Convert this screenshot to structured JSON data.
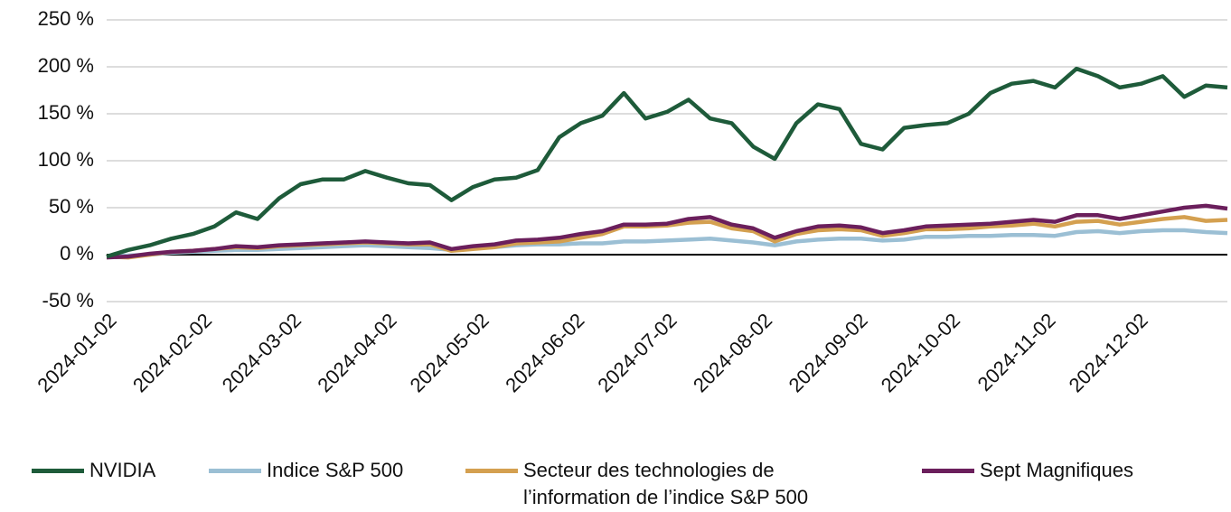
{
  "chart_data": {
    "type": "line",
    "x": [
      "2024-01-02",
      "2024-01-09",
      "2024-01-16",
      "2024-01-23",
      "2024-01-30",
      "2024-02-06",
      "2024-02-13",
      "2024-02-20",
      "2024-02-27",
      "2024-03-05",
      "2024-03-12",
      "2024-03-19",
      "2024-03-26",
      "2024-04-02",
      "2024-04-09",
      "2024-04-16",
      "2024-04-23",
      "2024-04-30",
      "2024-05-07",
      "2024-05-14",
      "2024-05-21",
      "2024-05-28",
      "2024-06-04",
      "2024-06-11",
      "2024-06-18",
      "2024-06-25",
      "2024-07-02",
      "2024-07-09",
      "2024-07-16",
      "2024-07-23",
      "2024-07-30",
      "2024-08-06",
      "2024-08-13",
      "2024-08-20",
      "2024-08-27",
      "2024-09-03",
      "2024-09-10",
      "2024-09-17",
      "2024-09-24",
      "2024-10-01",
      "2024-10-08",
      "2024-10-15",
      "2024-10-22",
      "2024-10-29",
      "2024-11-05",
      "2024-11-12",
      "2024-11-19",
      "2024-11-26",
      "2024-12-03",
      "2024-12-10",
      "2024-12-17",
      "2024-12-24",
      "2024-12-31"
    ],
    "series": [
      {
        "name": "NVIDIA",
        "color": "#1e5b3a",
        "values": [
          -2,
          5,
          10,
          17,
          22,
          30,
          45,
          38,
          60,
          75,
          80,
          80,
          89,
          82,
          76,
          74,
          58,
          72,
          80,
          82,
          90,
          125,
          140,
          148,
          172,
          145,
          152,
          165,
          145,
          140,
          115,
          102,
          140,
          160,
          155,
          118,
          112,
          135,
          138,
          140,
          150,
          172,
          182,
          185,
          178,
          198,
          190,
          178,
          182,
          190,
          168,
          180,
          178
        ]
      },
      {
        "name": "Indice S&P 500",
        "color": "#9bbfd4",
        "values": [
          -2,
          -1,
          0,
          2,
          3,
          4,
          5,
          5,
          6,
          7,
          8,
          9,
          10,
          9,
          8,
          7,
          5,
          7,
          8,
          10,
          11,
          11,
          12,
          12,
          14,
          14,
          15,
          16,
          17,
          15,
          13,
          10,
          14,
          16,
          17,
          17,
          15,
          16,
          19,
          19,
          20,
          20,
          21,
          21,
          20,
          24,
          25,
          23,
          25,
          26,
          26,
          24,
          23
        ]
      },
      {
        "name": "Secteur des technologies de l’information de l’indice S&P 500",
        "color": "#d4a050",
        "values": [
          -2,
          -3,
          0,
          3,
          4,
          6,
          8,
          7,
          9,
          10,
          11,
          12,
          13,
          12,
          11,
          11,
          4,
          6,
          8,
          12,
          13,
          14,
          18,
          22,
          30,
          30,
          31,
          34,
          35,
          28,
          25,
          14,
          22,
          26,
          27,
          26,
          20,
          23,
          27,
          27,
          28,
          30,
          31,
          33,
          30,
          35,
          36,
          32,
          35,
          38,
          40,
          36,
          37
        ]
      },
      {
        "name": "Sept Magnifiques",
        "color": "#6b1f5c",
        "values": [
          -3,
          -2,
          1,
          3,
          4,
          6,
          9,
          8,
          10,
          11,
          12,
          13,
          14,
          13,
          12,
          13,
          6,
          9,
          11,
          15,
          16,
          18,
          22,
          25,
          32,
          32,
          33,
          38,
          40,
          32,
          28,
          18,
          25,
          30,
          31,
          29,
          23,
          26,
          30,
          31,
          32,
          33,
          35,
          37,
          35,
          42,
          42,
          38,
          42,
          46,
          50,
          52,
          49
        ]
      }
    ],
    "xlim": [
      "2024-01-02",
      "2024-12-31"
    ],
    "xticks": [
      "2024-01-02",
      "2024-02-02",
      "2024-03-02",
      "2024-04-02",
      "2024-05-02",
      "2024-06-02",
      "2024-07-02",
      "2024-08-02",
      "2024-09-02",
      "2024-10-02",
      "2024-11-02",
      "2024-12-02"
    ],
    "ylim": [
      -50,
      250
    ],
    "yticks": [
      {
        "value": -50,
        "label": "-50 %"
      },
      {
        "value": 0,
        "label": "0 %"
      },
      {
        "value": 50,
        "label": "50 %"
      },
      {
        "value": 100,
        "label": "100 %"
      },
      {
        "value": 150,
        "label": "150 %"
      },
      {
        "value": 200,
        "label": "200 %"
      },
      {
        "value": 250,
        "label": "250 %"
      }
    ],
    "grid": true
  }
}
